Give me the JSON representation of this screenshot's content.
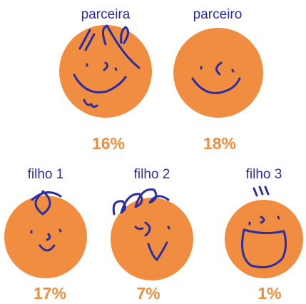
{
  "members": [
    {
      "label": "parceira",
      "share": "16%"
    },
    {
      "label": "parceiro",
      "share": "18%"
    },
    {
      "label": "filho 1",
      "share": "17%"
    },
    {
      "label": "filho 2",
      "share": "7%"
    },
    {
      "label": "filho 3",
      "share": "1%"
    }
  ]
}
